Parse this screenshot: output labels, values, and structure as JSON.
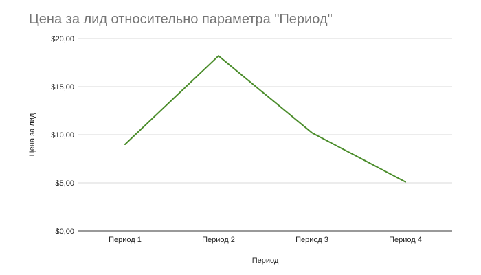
{
  "chart_data": {
    "type": "line",
    "title": "Цена за лид относительно параметра \"Период\"",
    "xlabel": "Период",
    "ylabel": "Цена за лид",
    "categories": [
      "Период 1",
      "Период 2",
      "Период 3",
      "Период 4"
    ],
    "series": [
      {
        "values": [
          9.0,
          18.2,
          10.2,
          5.1
        ],
        "color": "#4a8c2a"
      }
    ],
    "ylim": [
      0,
      20
    ],
    "yticks": [
      0,
      5,
      10,
      15,
      20
    ],
    "ytick_labels": [
      "$0,00",
      "$5,00",
      "$10,00",
      "$15,00",
      "$20,00"
    ],
    "grid": true,
    "legend": "none"
  }
}
